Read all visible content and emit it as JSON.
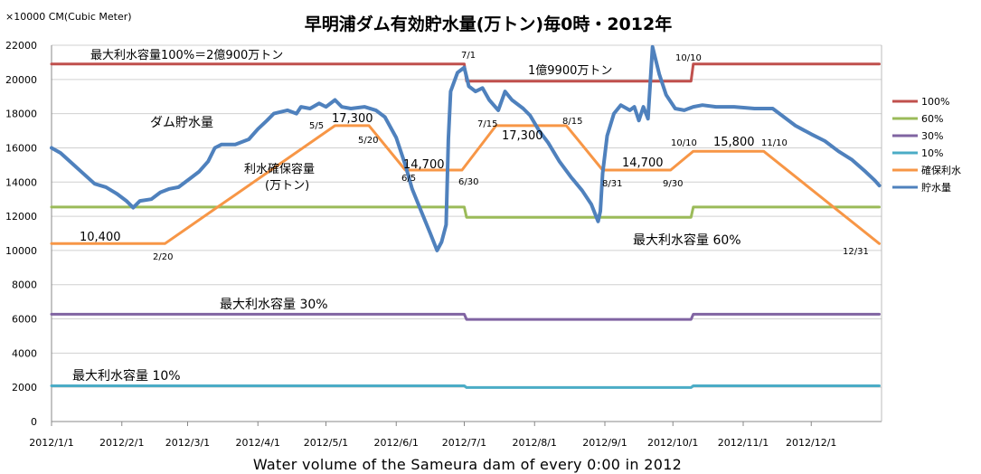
{
  "chart_data": {
    "type": "line",
    "title": "早明浦ダム有効貯水量(万トン)毎0時・2012年",
    "unit_label": "×10000 CM(Cubic Meter)",
    "caption": "Water volume of the Sameura dam of every 0:00 in 2012",
    "ylim": [
      0,
      22000
    ],
    "y_ticks": [
      "0",
      "2000",
      "4000",
      "6000",
      "8000",
      "10000",
      "12000",
      "14000",
      "16000",
      "18000",
      "20000",
      "22000"
    ],
    "x_ticks": [
      "2012/1/1",
      "2012/2/1",
      "2012/3/1",
      "2012/4/1",
      "2012/5/1",
      "2012/6/1",
      "2012/7/1",
      "2012/8/1",
      "2012/9/1",
      "2012/10/1",
      "2012/11/1",
      "2012/12/1"
    ],
    "x_range": [
      "2012-01-01",
      "2012-12-31"
    ],
    "grid": "horizontal",
    "legend_position": "right",
    "series": [
      {
        "name": "100%",
        "color": "#c0504d",
        "points": [
          [
            "2012-01-01",
            20900
          ],
          [
            "2012-07-01",
            20900
          ],
          [
            "2012-07-02",
            19900
          ],
          [
            "2012-10-09",
            19900
          ],
          [
            "2012-10-10",
            20900
          ],
          [
            "2012-12-31",
            20900
          ]
        ]
      },
      {
        "name": "60%",
        "color": "#9bbb59",
        "points": [
          [
            "2012-01-01",
            12540
          ],
          [
            "2012-07-01",
            12540
          ],
          [
            "2012-07-02",
            11940
          ],
          [
            "2012-10-09",
            11940
          ],
          [
            "2012-10-10",
            12540
          ],
          [
            "2012-12-31",
            12540
          ]
        ]
      },
      {
        "name": "30%",
        "color": "#8064a2",
        "points": [
          [
            "2012-01-01",
            6270
          ],
          [
            "2012-07-01",
            6270
          ],
          [
            "2012-07-02",
            5970
          ],
          [
            "2012-10-09",
            5970
          ],
          [
            "2012-10-10",
            6270
          ],
          [
            "2012-12-31",
            6270
          ]
        ]
      },
      {
        "name": "10%",
        "color": "#4bacc6",
        "points": [
          [
            "2012-01-01",
            2090
          ],
          [
            "2012-07-01",
            2090
          ],
          [
            "2012-07-02",
            1990
          ],
          [
            "2012-10-09",
            1990
          ],
          [
            "2012-10-10",
            2090
          ],
          [
            "2012-12-31",
            2090
          ]
        ]
      },
      {
        "name": "確保利水",
        "color": "#f79646",
        "points": [
          [
            "2012-01-01",
            10400
          ],
          [
            "2012-02-20",
            10400
          ],
          [
            "2012-05-05",
            17300
          ],
          [
            "2012-05-20",
            17300
          ],
          [
            "2012-06-05",
            14700
          ],
          [
            "2012-06-30",
            14700
          ],
          [
            "2012-07-15",
            17300
          ],
          [
            "2012-08-15",
            17300
          ],
          [
            "2012-08-31",
            14700
          ],
          [
            "2012-09-30",
            14700
          ],
          [
            "2012-10-10",
            15800
          ],
          [
            "2012-11-10",
            15800
          ],
          [
            "2012-12-31",
            10400
          ]
        ]
      },
      {
        "name": "貯水量",
        "color": "#4f81bd",
        "points": [
          [
            "2012-01-01",
            16000
          ],
          [
            "2012-01-05",
            15700
          ],
          [
            "2012-01-10",
            15100
          ],
          [
            "2012-01-15",
            14500
          ],
          [
            "2012-01-20",
            13900
          ],
          [
            "2012-01-25",
            13700
          ],
          [
            "2012-01-30",
            13300
          ],
          [
            "2012-02-03",
            12900
          ],
          [
            "2012-02-06",
            12500
          ],
          [
            "2012-02-09",
            12900
          ],
          [
            "2012-02-14",
            13000
          ],
          [
            "2012-02-18",
            13400
          ],
          [
            "2012-02-22",
            13600
          ],
          [
            "2012-02-26",
            13700
          ],
          [
            "2012-03-02",
            14200
          ],
          [
            "2012-03-06",
            14600
          ],
          [
            "2012-03-10",
            15200
          ],
          [
            "2012-03-13",
            16000
          ],
          [
            "2012-03-16",
            16200
          ],
          [
            "2012-03-22",
            16200
          ],
          [
            "2012-03-28",
            16500
          ],
          [
            "2012-04-01",
            17100
          ],
          [
            "2012-04-05",
            17600
          ],
          [
            "2012-04-08",
            18000
          ],
          [
            "2012-04-14",
            18200
          ],
          [
            "2012-04-18",
            18000
          ],
          [
            "2012-04-20",
            18400
          ],
          [
            "2012-04-24",
            18300
          ],
          [
            "2012-04-28",
            18600
          ],
          [
            "2012-05-01",
            18400
          ],
          [
            "2012-05-05",
            18800
          ],
          [
            "2012-05-08",
            18400
          ],
          [
            "2012-05-12",
            18300
          ],
          [
            "2012-05-18",
            18400
          ],
          [
            "2012-05-23",
            18200
          ],
          [
            "2012-05-27",
            17800
          ],
          [
            "2012-06-01",
            16600
          ],
          [
            "2012-06-05",
            15000
          ],
          [
            "2012-06-08",
            13600
          ],
          [
            "2012-06-12",
            12300
          ],
          [
            "2012-06-16",
            11000
          ],
          [
            "2012-06-19",
            10000
          ],
          [
            "2012-06-21",
            10500
          ],
          [
            "2012-06-23",
            11500
          ],
          [
            "2012-06-24",
            16500
          ],
          [
            "2012-06-25",
            19300
          ],
          [
            "2012-06-28",
            20400
          ],
          [
            "2012-07-01",
            20700
          ],
          [
            "2012-07-03",
            19600
          ],
          [
            "2012-07-06",
            19300
          ],
          [
            "2012-07-09",
            19500
          ],
          [
            "2012-07-12",
            18800
          ],
          [
            "2012-07-16",
            18200
          ],
          [
            "2012-07-19",
            19300
          ],
          [
            "2012-07-22",
            18800
          ],
          [
            "2012-07-27",
            18300
          ],
          [
            "2012-07-30",
            17900
          ],
          [
            "2012-08-03",
            17000
          ],
          [
            "2012-08-07",
            16300
          ],
          [
            "2012-08-12",
            15200
          ],
          [
            "2012-08-17",
            14300
          ],
          [
            "2012-08-22",
            13500
          ],
          [
            "2012-08-26",
            12700
          ],
          [
            "2012-08-29",
            11700
          ],
          [
            "2012-08-30",
            12300
          ],
          [
            "2012-08-31",
            14500
          ],
          [
            "2012-09-02",
            16700
          ],
          [
            "2012-09-05",
            18000
          ],
          [
            "2012-09-08",
            18500
          ],
          [
            "2012-09-12",
            18200
          ],
          [
            "2012-09-14",
            18400
          ],
          [
            "2012-09-16",
            17600
          ],
          [
            "2012-09-18",
            18400
          ],
          [
            "2012-09-20",
            17700
          ],
          [
            "2012-09-22",
            21900
          ],
          [
            "2012-09-25",
            20300
          ],
          [
            "2012-09-28",
            19100
          ],
          [
            "2012-10-02",
            18300
          ],
          [
            "2012-10-06",
            18200
          ],
          [
            "2012-10-10",
            18400
          ],
          [
            "2012-10-14",
            18500
          ],
          [
            "2012-10-20",
            18400
          ],
          [
            "2012-10-28",
            18400
          ],
          [
            "2012-11-06",
            18300
          ],
          [
            "2012-11-14",
            18300
          ],
          [
            "2012-11-18",
            17900
          ],
          [
            "2012-11-24",
            17300
          ],
          [
            "2012-12-01",
            16800
          ],
          [
            "2012-12-07",
            16400
          ],
          [
            "2012-12-13",
            15800
          ],
          [
            "2012-12-19",
            15300
          ],
          [
            "2012-12-25",
            14600
          ],
          [
            "2012-12-29",
            14100
          ],
          [
            "2012-12-31",
            13800
          ]
        ]
      }
    ],
    "annotations": {
      "max_100": "最大利水容量100%＝2億900万トン",
      "reduced_100": "1億9900万トン",
      "max_60": "最大利水容量 60%",
      "max_30": "最大利水容量 30%",
      "max_10": "最大利水容量 10%",
      "storage": "ダム貯水量",
      "secured_line1": "利水確保容量",
      "secured_line2": "(万トン)",
      "v10400": "10,400",
      "v17300a": "17,300",
      "v14700a": "14,700",
      "v17300b": "17,300",
      "v14700b": "14,700",
      "v15800": "15,800",
      "d_2_20": "2/20",
      "d_5_5": "5/5",
      "d_5_20": "5/20",
      "d_6_5": "6/5",
      "d_6_30": "6/30",
      "d_7_1": "7/1",
      "d_7_15": "7/15",
      "d_8_15": "8/15",
      "d_8_31": "8/31",
      "d_9_30": "9/30",
      "d_10_10a": "10/10",
      "d_10_10b": "10/10",
      "d_11_10": "11/10",
      "d_12_31": "12/31"
    }
  }
}
